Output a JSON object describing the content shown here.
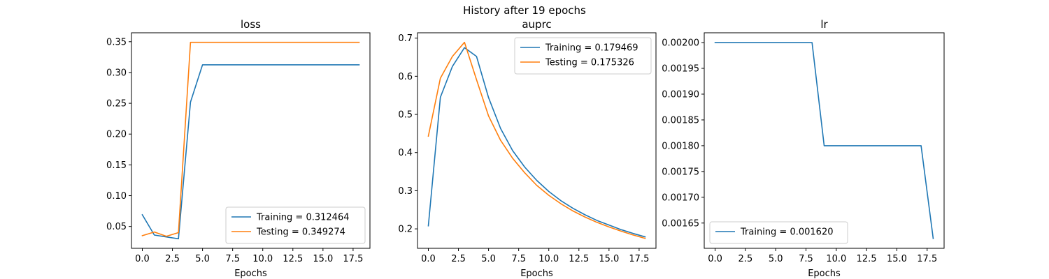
{
  "figure": {
    "suptitle": "History after 19 epochs"
  },
  "colors": {
    "training": "#1f77b4",
    "testing": "#ff7f0e"
  },
  "chart_data": [
    {
      "type": "line",
      "title": "loss",
      "xlabel": "Epochs",
      "ylabel": "",
      "xlim": [
        -0.9,
        18.9
      ],
      "ylim": [
        0.0145,
        0.3645
      ],
      "xticks": [
        0.0,
        2.5,
        5.0,
        7.5,
        10.0,
        12.5,
        15.0,
        17.5
      ],
      "xtick_labels": [
        "0.0",
        "2.5",
        "5.0",
        "7.5",
        "10.0",
        "12.5",
        "15.0",
        "17.5"
      ],
      "yticks": [
        0.05,
        0.1,
        0.15,
        0.2,
        0.25,
        0.3,
        0.35
      ],
      "ytick_labels": [
        "0.05",
        "0.10",
        "0.15",
        "0.20",
        "0.25",
        "0.30",
        "0.35"
      ],
      "grid": false,
      "legend_loc": "lower-right",
      "x": [
        0,
        1,
        2,
        3,
        4,
        5,
        6,
        7,
        8,
        9,
        10,
        11,
        12,
        13,
        14,
        15,
        16,
        17,
        18
      ],
      "series": [
        {
          "name": "Training = 0.312464",
          "color": "#1f77b4",
          "values": [
            0.069,
            0.036,
            0.033,
            0.03,
            0.252,
            0.3125,
            0.3125,
            0.3125,
            0.3125,
            0.3125,
            0.3125,
            0.3125,
            0.3125,
            0.3125,
            0.3125,
            0.3125,
            0.3125,
            0.3125,
            0.3125
          ]
        },
        {
          "name": "Testing = 0.349274",
          "color": "#ff7f0e",
          "values": [
            0.035,
            0.041,
            0.034,
            0.04,
            0.349,
            0.349,
            0.349,
            0.349,
            0.349,
            0.349,
            0.349,
            0.349,
            0.349,
            0.349,
            0.349,
            0.349,
            0.349,
            0.349,
            0.349
          ]
        }
      ]
    },
    {
      "type": "line",
      "title": "auprc",
      "xlabel": "Epochs",
      "ylabel": "",
      "xlim": [
        -0.9,
        18.9
      ],
      "ylim": [
        0.149,
        0.714
      ],
      "xticks": [
        0.0,
        2.5,
        5.0,
        7.5,
        10.0,
        12.5,
        15.0,
        17.5
      ],
      "xtick_labels": [
        "0.0",
        "2.5",
        "5.0",
        "7.5",
        "10.0",
        "12.5",
        "15.0",
        "17.5"
      ],
      "yticks": [
        0.2,
        0.3,
        0.4,
        0.5,
        0.6,
        0.7
      ],
      "ytick_labels": [
        "0.2",
        "0.3",
        "0.4",
        "0.5",
        "0.6",
        "0.7"
      ],
      "grid": false,
      "legend_loc": "upper-right",
      "x": [
        0,
        1,
        2,
        3,
        4,
        5,
        6,
        7,
        8,
        9,
        10,
        11,
        12,
        13,
        14,
        15,
        16,
        17,
        18
      ],
      "series": [
        {
          "name": "Training = 0.179469",
          "color": "#1f77b4",
          "values": [
            0.208,
            0.545,
            0.626,
            0.675,
            0.652,
            0.544,
            0.463,
            0.405,
            0.362,
            0.327,
            0.298,
            0.274,
            0.254,
            0.237,
            0.222,
            0.21,
            0.198,
            0.188,
            0.179
          ]
        },
        {
          "name": "Testing = 0.175326",
          "color": "#ff7f0e",
          "values": [
            0.443,
            0.595,
            0.652,
            0.689,
            0.591,
            0.496,
            0.432,
            0.385,
            0.347,
            0.314,
            0.288,
            0.266,
            0.247,
            0.231,
            0.217,
            0.205,
            0.194,
            0.184,
            0.175
          ]
        }
      ]
    },
    {
      "type": "line",
      "title": "lr",
      "xlabel": "Epochs",
      "ylabel": "",
      "xlim": [
        -0.9,
        18.9
      ],
      "ylim": [
        0.001601,
        0.002019
      ],
      "xticks": [
        0.0,
        2.5,
        5.0,
        7.5,
        10.0,
        12.5,
        15.0,
        17.5
      ],
      "xtick_labels": [
        "0.0",
        "2.5",
        "5.0",
        "7.5",
        "10.0",
        "12.5",
        "15.0",
        "17.5"
      ],
      "yticks": [
        0.00165,
        0.0017,
        0.00175,
        0.0018,
        0.00185,
        0.0019,
        0.00195,
        0.002
      ],
      "ytick_labels": [
        "0.00165",
        "0.00170",
        "0.00175",
        "0.00180",
        "0.00185",
        "0.00190",
        "0.00195",
        "0.00200"
      ],
      "grid": false,
      "legend_loc": "lower-left",
      "x": [
        0,
        1,
        2,
        3,
        4,
        5,
        6,
        7,
        8,
        9,
        10,
        11,
        12,
        13,
        14,
        15,
        16,
        17,
        18
      ],
      "series": [
        {
          "name": "Training = 0.001620",
          "color": "#1f77b4",
          "values": [
            0.002,
            0.002,
            0.002,
            0.002,
            0.002,
            0.002,
            0.002,
            0.002,
            0.002,
            0.0018,
            0.0018,
            0.0018,
            0.0018,
            0.0018,
            0.0018,
            0.0018,
            0.0018,
            0.0018,
            0.00162
          ]
        }
      ]
    }
  ]
}
